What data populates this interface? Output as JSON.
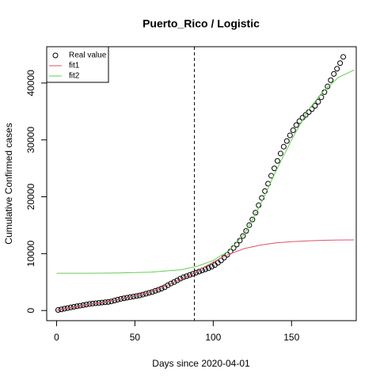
{
  "chart_data": {
    "type": "scatter",
    "title": "Puerto_Rico / Logistic",
    "xlabel": "Days since 2020-04-01",
    "ylabel": "Cumulative Confirmed cases",
    "xlim": [
      -6.3,
      191.3
    ],
    "ylim": [
      -1784,
      46384
    ],
    "xticks": [
      0,
      50,
      100,
      150
    ],
    "yticks": [
      0,
      10000,
      20000,
      30000,
      40000
    ],
    "vline": 88,
    "legend": "top-left",
    "series": [
      {
        "name": "Real value",
        "style": "points",
        "color": "#000000",
        "x": [
          1,
          3,
          5,
          7,
          9,
          11,
          13,
          15,
          17,
          19,
          21,
          23,
          25,
          27,
          29,
          31,
          33,
          35,
          37,
          39,
          41,
          43,
          45,
          47,
          49,
          51,
          53,
          55,
          57,
          59,
          61,
          63,
          65,
          67,
          69,
          71,
          73,
          75,
          77,
          79,
          81,
          83,
          85,
          87,
          89,
          91,
          93,
          95,
          97,
          99,
          101,
          103,
          105,
          107,
          109,
          111,
          113,
          115,
          117,
          119,
          121,
          123,
          125,
          127,
          129,
          131,
          133,
          135,
          137,
          139,
          141,
          143,
          145,
          147,
          149,
          151,
          153,
          155,
          157,
          159,
          161,
          163,
          165,
          167,
          169,
          171,
          173,
          175,
          177,
          179,
          181,
          183
        ],
        "values": [
          100,
          200,
          320,
          430,
          540,
          650,
          750,
          850,
          950,
          1050,
          1150,
          1220,
          1280,
          1340,
          1400,
          1450,
          1500,
          1600,
          1750,
          1900,
          2050,
          2150,
          2250,
          2350,
          2450,
          2550,
          2650,
          2800,
          2950,
          3100,
          3250,
          3450,
          3650,
          3850,
          4100,
          4450,
          4750,
          5000,
          5300,
          5600,
          5850,
          6050,
          6250,
          6450,
          6650,
          6850,
          7050,
          7250,
          7450,
          7700,
          8000,
          8400,
          8800,
          9300,
          9800,
          10400,
          11000,
          11600,
          12300,
          13100,
          14000,
          15000,
          16000,
          17200,
          18500,
          19800,
          21000,
          22300,
          23700,
          25000,
          26300,
          27600,
          28800,
          29800,
          30800,
          31700,
          32600,
          33300,
          33900,
          34400,
          34900,
          35400,
          36000,
          36700,
          37500,
          38400,
          39400,
          40500,
          41600,
          42500,
          43500,
          44600
        ]
      },
      {
        "name": "fit1",
        "style": "line",
        "color": "#df536b",
        "x": [
          0,
          20,
          40,
          60,
          80,
          90,
          100,
          110,
          120,
          130,
          140,
          150,
          160,
          170,
          180,
          190
        ],
        "values": [
          50,
          1000,
          2000,
          3300,
          5500,
          7000,
          8500,
          9900,
          10900,
          11500,
          11900,
          12100,
          12250,
          12350,
          12400,
          12420
        ]
      },
      {
        "name": "fit2",
        "style": "line",
        "color": "#61d04f",
        "x": [
          0,
          20,
          40,
          60,
          80,
          90,
          100,
          110,
          120,
          130,
          140,
          150,
          160,
          170,
          180,
          190
        ],
        "values": [
          6550,
          6560,
          6600,
          6750,
          7200,
          7800,
          8800,
          10500,
          13500,
          18500,
          24500,
          30000,
          35000,
          38500,
          41000,
          42300
        ]
      }
    ]
  }
}
